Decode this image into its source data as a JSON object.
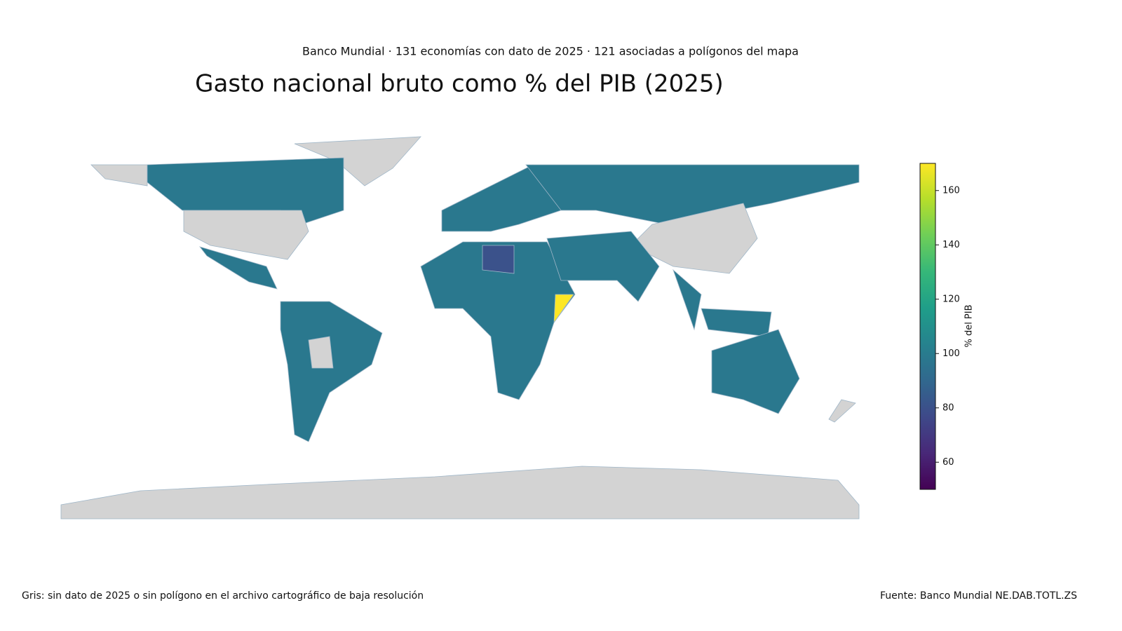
{
  "chart_data": {
    "type": "choropleth",
    "subtitle": "Banco Mundial · 131 economías con dato de 2025 · 121 asociadas a polígonos del mapa",
    "title": "Gasto nacional bruto como % del PIB (2025)",
    "colorbar_title": "% del PIB",
    "colorscale": "Viridis",
    "zlim": [
      50,
      170
    ],
    "zticks": [
      60,
      80,
      100,
      120,
      140,
      160
    ],
    "note": "Gris: sin dato de 2025 o sin polígono en el archivo cartográfico de baja resolución",
    "source": "Fuente: Banco Mundial NE.DAB.TOTL.ZS"
  }
}
